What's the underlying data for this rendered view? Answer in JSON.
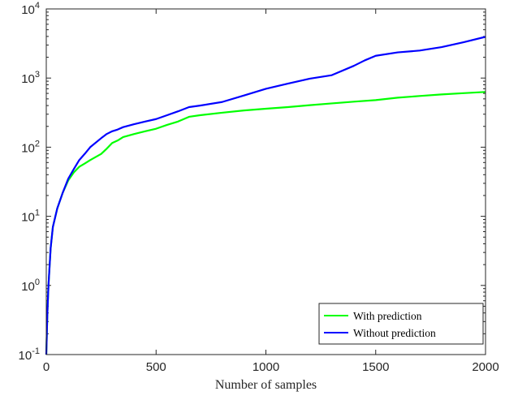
{
  "chart_data": {
    "type": "line",
    "title": "",
    "xlabel": "Number of samples",
    "ylabel": "",
    "xlim": [
      0,
      2000
    ],
    "ylim": [
      0.1,
      10000
    ],
    "yscale": "log",
    "grid": false,
    "legend_position": "bottom-right",
    "x_ticks": [
      0,
      500,
      1000,
      1500,
      2000
    ],
    "x_tick_labels": [
      "0",
      "500",
      "1000",
      "1500",
      "2000"
    ],
    "y_ticks": [
      0.1,
      1,
      10,
      100,
      1000,
      10000
    ],
    "y_tick_labels": [
      {
        "base": "10",
        "exp": "-1"
      },
      {
        "base": "10",
        "exp": "0"
      },
      {
        "base": "10",
        "exp": "1"
      },
      {
        "base": "10",
        "exp": "2"
      },
      {
        "base": "10",
        "exp": "3"
      },
      {
        "base": "10",
        "exp": "4"
      }
    ],
    "series": [
      {
        "name": "With prediction",
        "color": "#00ff00",
        "x": [
          0,
          5,
          10,
          20,
          30,
          50,
          75,
          100,
          125,
          150,
          175,
          200,
          250,
          275,
          300,
          325,
          350,
          400,
          450,
          500,
          550,
          600,
          650,
          700,
          800,
          900,
          1000,
          1100,
          1200,
          1300,
          1400,
          1500,
          1600,
          1700,
          1800,
          1900,
          2000
        ],
        "y": [
          0.1,
          0.4,
          1.0,
          3.5,
          7.0,
          13,
          22,
          33,
          43,
          52,
          58,
          65,
          80,
          95,
          115,
          125,
          140,
          155,
          170,
          185,
          210,
          235,
          275,
          290,
          315,
          340,
          360,
          380,
          405,
          430,
          455,
          480,
          520,
          550,
          580,
          605,
          630
        ]
      },
      {
        "name": "Without prediction",
        "color": "#0000ff",
        "x": [
          0,
          5,
          10,
          20,
          30,
          50,
          75,
          100,
          125,
          150,
          175,
          200,
          250,
          275,
          300,
          325,
          350,
          400,
          450,
          500,
          550,
          600,
          650,
          700,
          800,
          900,
          1000,
          1100,
          1200,
          1300,
          1400,
          1450,
          1500,
          1600,
          1700,
          1800,
          1900,
          2000
        ],
        "y": [
          0.1,
          0.4,
          1.0,
          3.5,
          7.0,
          13,
          22,
          35,
          48,
          65,
          80,
          100,
          135,
          155,
          170,
          180,
          195,
          215,
          235,
          255,
          290,
          330,
          380,
          400,
          450,
          560,
          700,
          830,
          980,
          1100,
          1500,
          1800,
          2100,
          2350,
          2500,
          2800,
          3300,
          3950
        ]
      }
    ]
  }
}
